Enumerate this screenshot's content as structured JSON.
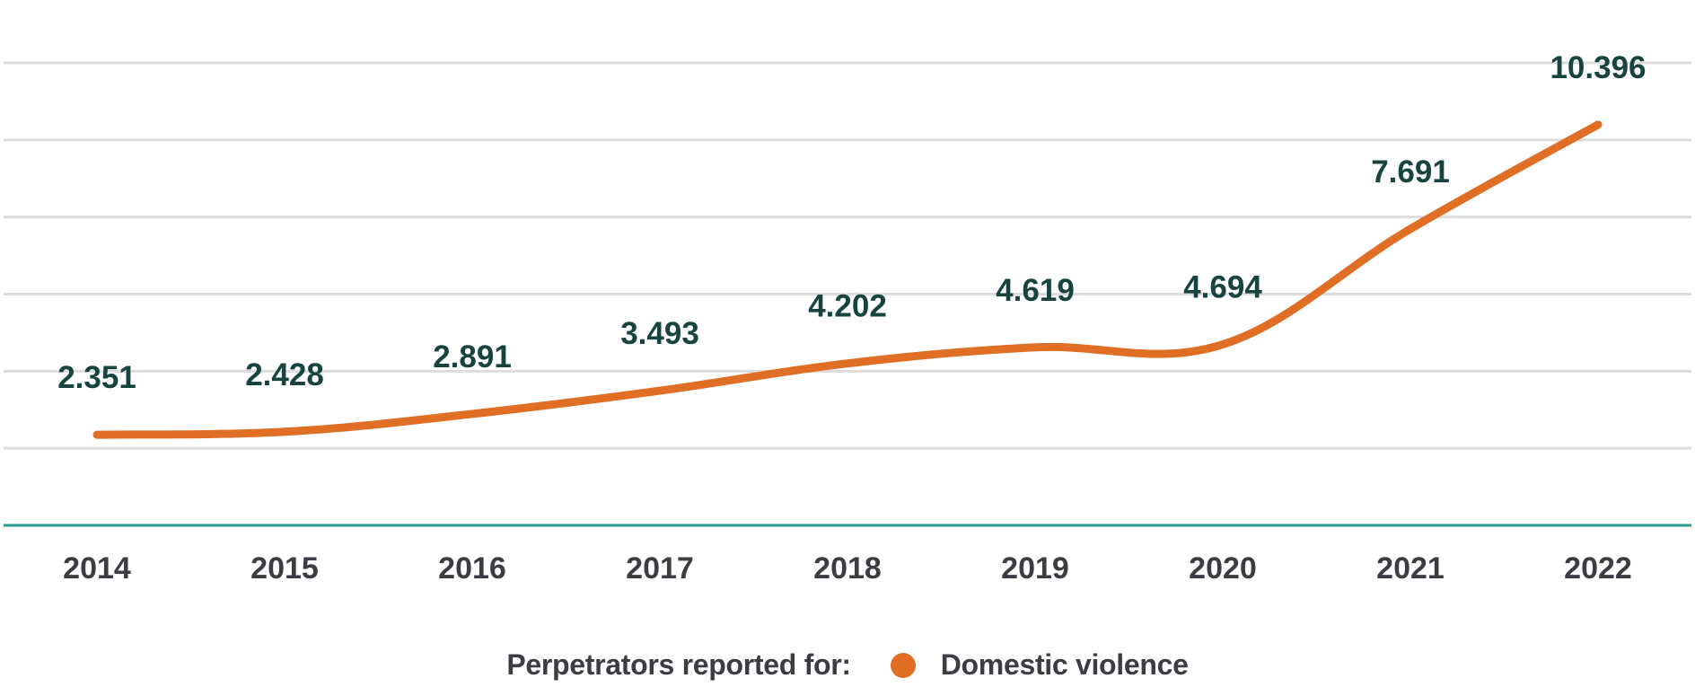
{
  "chart_data": {
    "type": "line",
    "title": "",
    "xlabel": "",
    "ylabel": "",
    "categories": [
      "2014",
      "2015",
      "2016",
      "2017",
      "2018",
      "2019",
      "2020",
      "2021",
      "2022"
    ],
    "series": [
      {
        "name": "Domestic violence",
        "color": "#e06e24",
        "values": [
          2351,
          2428,
          2891,
          3493,
          4202,
          4619,
          4694,
          7691,
          10396
        ],
        "labels": [
          "2.351",
          "2.428",
          "2.891",
          "3.493",
          "4.202",
          "4.619",
          "4.694",
          "7.691",
          "10.396"
        ]
      }
    ],
    "ylim": [
      0,
      12000
    ],
    "ygrid_step": 2000,
    "grid": true,
    "y_tick_labels_shown": false,
    "legend": {
      "title": "Perpetrators reported for:",
      "entries": [
        "Domestic violence"
      ],
      "placement": "bottom-center"
    },
    "colors": {
      "line": "#e06e24",
      "data_label": "#17443f",
      "tick_label": "#3b3d43",
      "gridline": "#dcdcdc",
      "axis": "#2a9b8f"
    }
  }
}
